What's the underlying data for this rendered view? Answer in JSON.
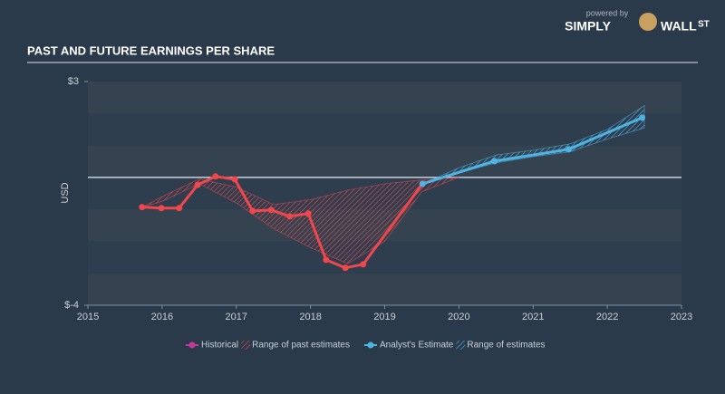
{
  "logo": {
    "powered_by": "powered by",
    "brand": "SIMPLY",
    "brand2": "WALL",
    "suffix": "ST"
  },
  "chart_data": {
    "type": "line",
    "title": "PAST AND FUTURE EARNINGS PER SHARE",
    "y_label": "USD",
    "xlim": [
      2015,
      2023
    ],
    "xticks": [
      2015,
      2016,
      2017,
      2018,
      2019,
      2020,
      2021,
      2022,
      2023
    ],
    "ylim": [
      -4,
      3
    ],
    "yticks": [
      {
        "value": 3,
        "label": "$3"
      },
      {
        "value": -4,
        "label": "$-4"
      }
    ],
    "series": [
      {
        "name": "Historical",
        "kind": "line",
        "color": "#f0474d",
        "legend_color": "#c2399a",
        "x": [
          2015.73,
          2015.99,
          2016.23,
          2016.48,
          2016.72,
          2016.98,
          2017.22,
          2017.47,
          2017.72,
          2017.97,
          2018.21,
          2018.47,
          2018.71,
          2019.51
        ],
        "values": [
          -0.93,
          -0.96,
          -0.96,
          -0.23,
          0.03,
          -0.06,
          -1.05,
          -1.02,
          -1.22,
          -1.13,
          -2.58,
          -2.83,
          -2.72,
          -0.2
        ]
      },
      {
        "name": "Range of past estimates",
        "kind": "band",
        "color": "#e8484f",
        "x": [
          2015.73,
          2016.0,
          2016.5,
          2017.0,
          2017.5,
          2018.0,
          2018.5,
          2019.0,
          2019.5,
          2020.0
        ],
        "high": [
          -0.93,
          -0.6,
          -0.05,
          -0.3,
          -0.85,
          -0.7,
          -0.4,
          -0.2,
          -0.08,
          0.0
        ],
        "low": [
          -0.93,
          -0.75,
          -0.2,
          -0.8,
          -1.6,
          -2.2,
          -2.7,
          -2.0,
          -0.45,
          0.0
        ]
      },
      {
        "name": "Analyst's Estimate",
        "kind": "line",
        "color": "#4fb4e3",
        "legend_color": "#4fb4e3",
        "x": [
          2019.51,
          2020.48,
          2021.48,
          2022.47
        ],
        "values": [
          -0.2,
          0.51,
          0.88,
          1.87
        ]
      },
      {
        "name": "Range of estimates",
        "kind": "band",
        "color": "#4fb4e3",
        "x": [
          2019.51,
          2020.0,
          2020.5,
          2021.0,
          2021.5,
          2022.0,
          2022.5
        ],
        "high": [
          -0.2,
          0.3,
          0.7,
          0.85,
          1.05,
          1.5,
          2.25
        ],
        "low": [
          -0.2,
          0.15,
          0.45,
          0.65,
          0.8,
          1.2,
          1.55
        ]
      }
    ]
  }
}
